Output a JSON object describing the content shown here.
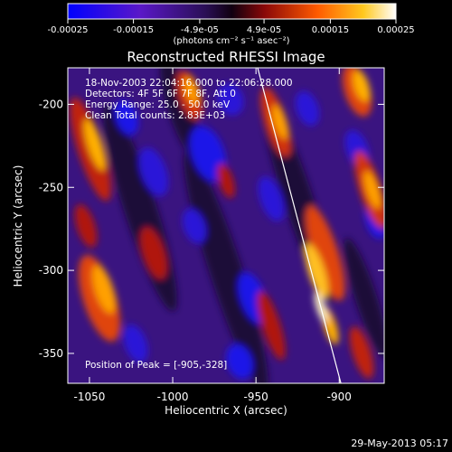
{
  "colorbar": {
    "ticks": [
      "-0.00025",
      "-0.00015",
      "-4.9e-05",
      "4.9e-05",
      "0.00015",
      "0.00025"
    ],
    "tick_values": [
      -0.00025,
      -0.00015,
      -4.9e-05,
      4.9e-05,
      0.00015,
      0.00025
    ],
    "range": [
      -0.00025,
      0.00025
    ],
    "unit_label": "(photons cm⁻² s⁻¹ asec⁻²)"
  },
  "chart_data": {
    "type": "heatmap",
    "title": "Reconstructed RHESSI Image",
    "xlabel": "Heliocentric X (arcsec)",
    "ylabel": "Heliocentric Y (arcsec)",
    "xlim": [
      -1063,
      -873
    ],
    "ylim": [
      -368,
      -178
    ],
    "xticks": [
      -1050,
      -1000,
      -950,
      -900
    ],
    "yticks": [
      -200,
      -250,
      -300,
      -350
    ],
    "xtick_labels": [
      "-1050",
      "-1000",
      "-950",
      "-900"
    ],
    "ytick_labels": [
      "-200",
      "-250",
      "-300",
      "-350"
    ],
    "peak": [
      -905,
      -328
    ],
    "limb_line": [
      [
        -949,
        -178
      ],
      [
        -899,
        -368
      ]
    ],
    "colormap": [
      "#0000ff",
      "#6a1fb4",
      "#2a1050",
      "#9a1010",
      "#ff6a00",
      "#ffd21e",
      "#ffffff"
    ],
    "info": [
      "18-Nov-2003 22:04:16.000 to 22:06:28.000",
      "Detectors: 4F 5F 6F 7F 8F, Att 0",
      "Energy Range: 25.0 - 50.0 keV",
      "Clean     Total counts: 2.83E+03"
    ],
    "peak_label": "Position of Peak = [-905,-328]"
  },
  "footer": {
    "date": "29-May-2013 05:17"
  }
}
